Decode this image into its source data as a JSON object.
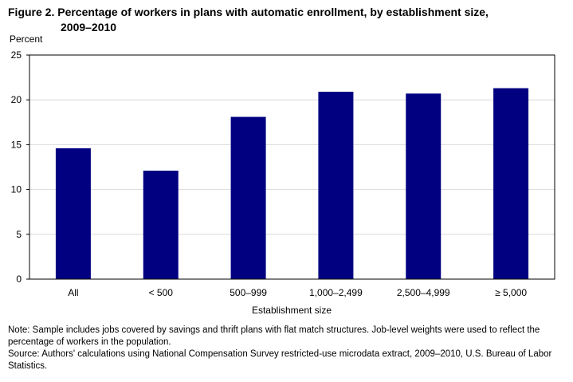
{
  "title_line1": "Figure 2. Percentage of workers in plans with automatic enrollment, by establishment size,",
  "title_line2": "2009–2010",
  "note": "Note: Sample includes jobs covered by savings and thrift plans with flat match structures. Job-level weights were used to reflect the percentage of workers in the population.",
  "source": "Source: Authors' calculations using National Compensation Survey restricted-use microdata extract, 2009–2010, U.S. Bureau of Labor Statistics.",
  "colors": {
    "bar": "#000080",
    "grid": "#d9d9d9",
    "axis": "#000000"
  },
  "chart_data": {
    "type": "bar",
    "categories": [
      "All",
      "< 500",
      "500–999",
      "1,000–2,499",
      "2,500–4,999",
      "≥ 5,000"
    ],
    "values": [
      14.6,
      12.1,
      18.1,
      20.9,
      20.7,
      21.3
    ],
    "xlabel": "Establishment  size",
    "ylabel": "Percent",
    "ylim": [
      0,
      25
    ],
    "yticks": [
      0,
      5,
      10,
      15,
      20,
      25
    ],
    "grid": true,
    "legend": "none"
  }
}
